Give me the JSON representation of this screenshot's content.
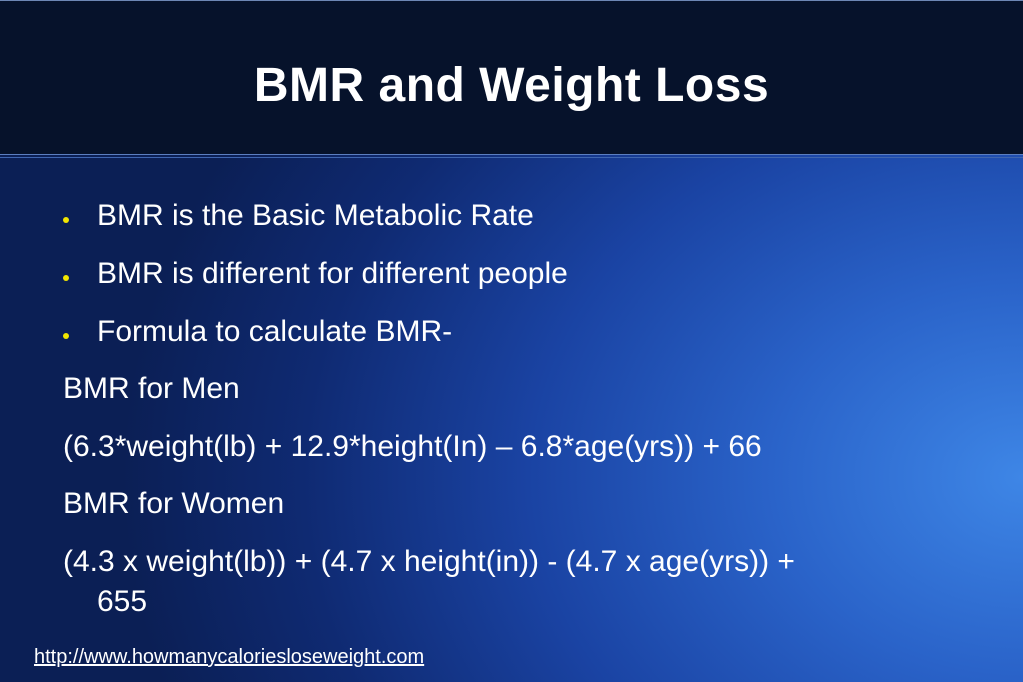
{
  "slide": {
    "title": "BMR and Weight Loss",
    "bullets": [
      "BMR is the Basic Metabolic Rate",
      "BMR is different for different people",
      "Formula to calculate BMR-"
    ],
    "lines": {
      "men_label": "BMR for Men",
      "men_formula": "(6.3*weight(lb) + 12.9*height(In) – 6.8*age(yrs)) + 66",
      "women_label": "BMR for Women",
      "women_formula_line1": "(4.3 x weight(lb)) + (4.7 x height(in)) - (4.7 x age(yrs)) +",
      "women_formula_line2": "655"
    },
    "footer_link": "http://www.howmanycaloriesloseweight.com"
  },
  "colors": {
    "header_bg": "#06122b",
    "bullet": "#f2e600",
    "text": "#ffffff"
  }
}
